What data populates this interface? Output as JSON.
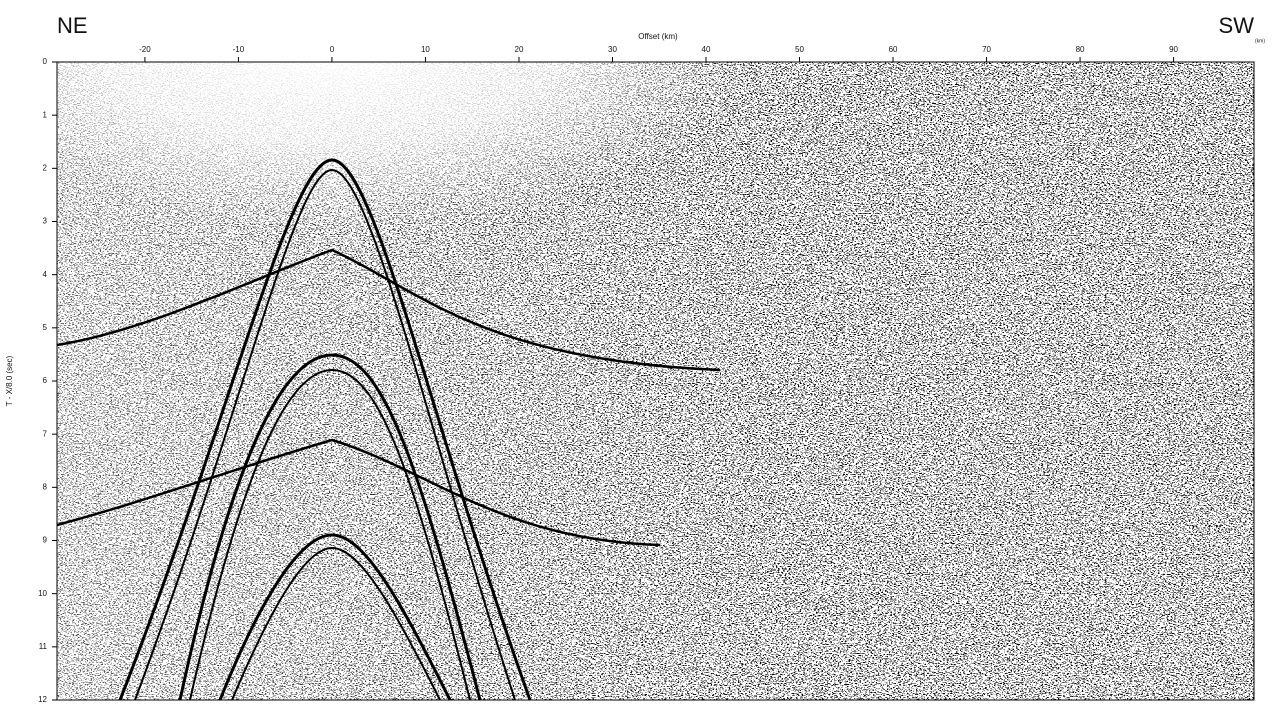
{
  "chart_data": {
    "type": "seismic-section",
    "title_left": "NE",
    "title_right": "SW",
    "title_right_unit": "(km)",
    "x_label": "Offset (km)",
    "y_label": "T - X/8.0 (sec)",
    "xlim": [
      -29.4,
      98.6
    ],
    "xticks": [
      -20,
      -10,
      0,
      10,
      20,
      30,
      40,
      50,
      60,
      70,
      80,
      90
    ],
    "ylim": [
      12,
      0
    ],
    "yticks": [
      0,
      1,
      2,
      3,
      4,
      5,
      6,
      7,
      8,
      9,
      10,
      11,
      12
    ]
  }
}
